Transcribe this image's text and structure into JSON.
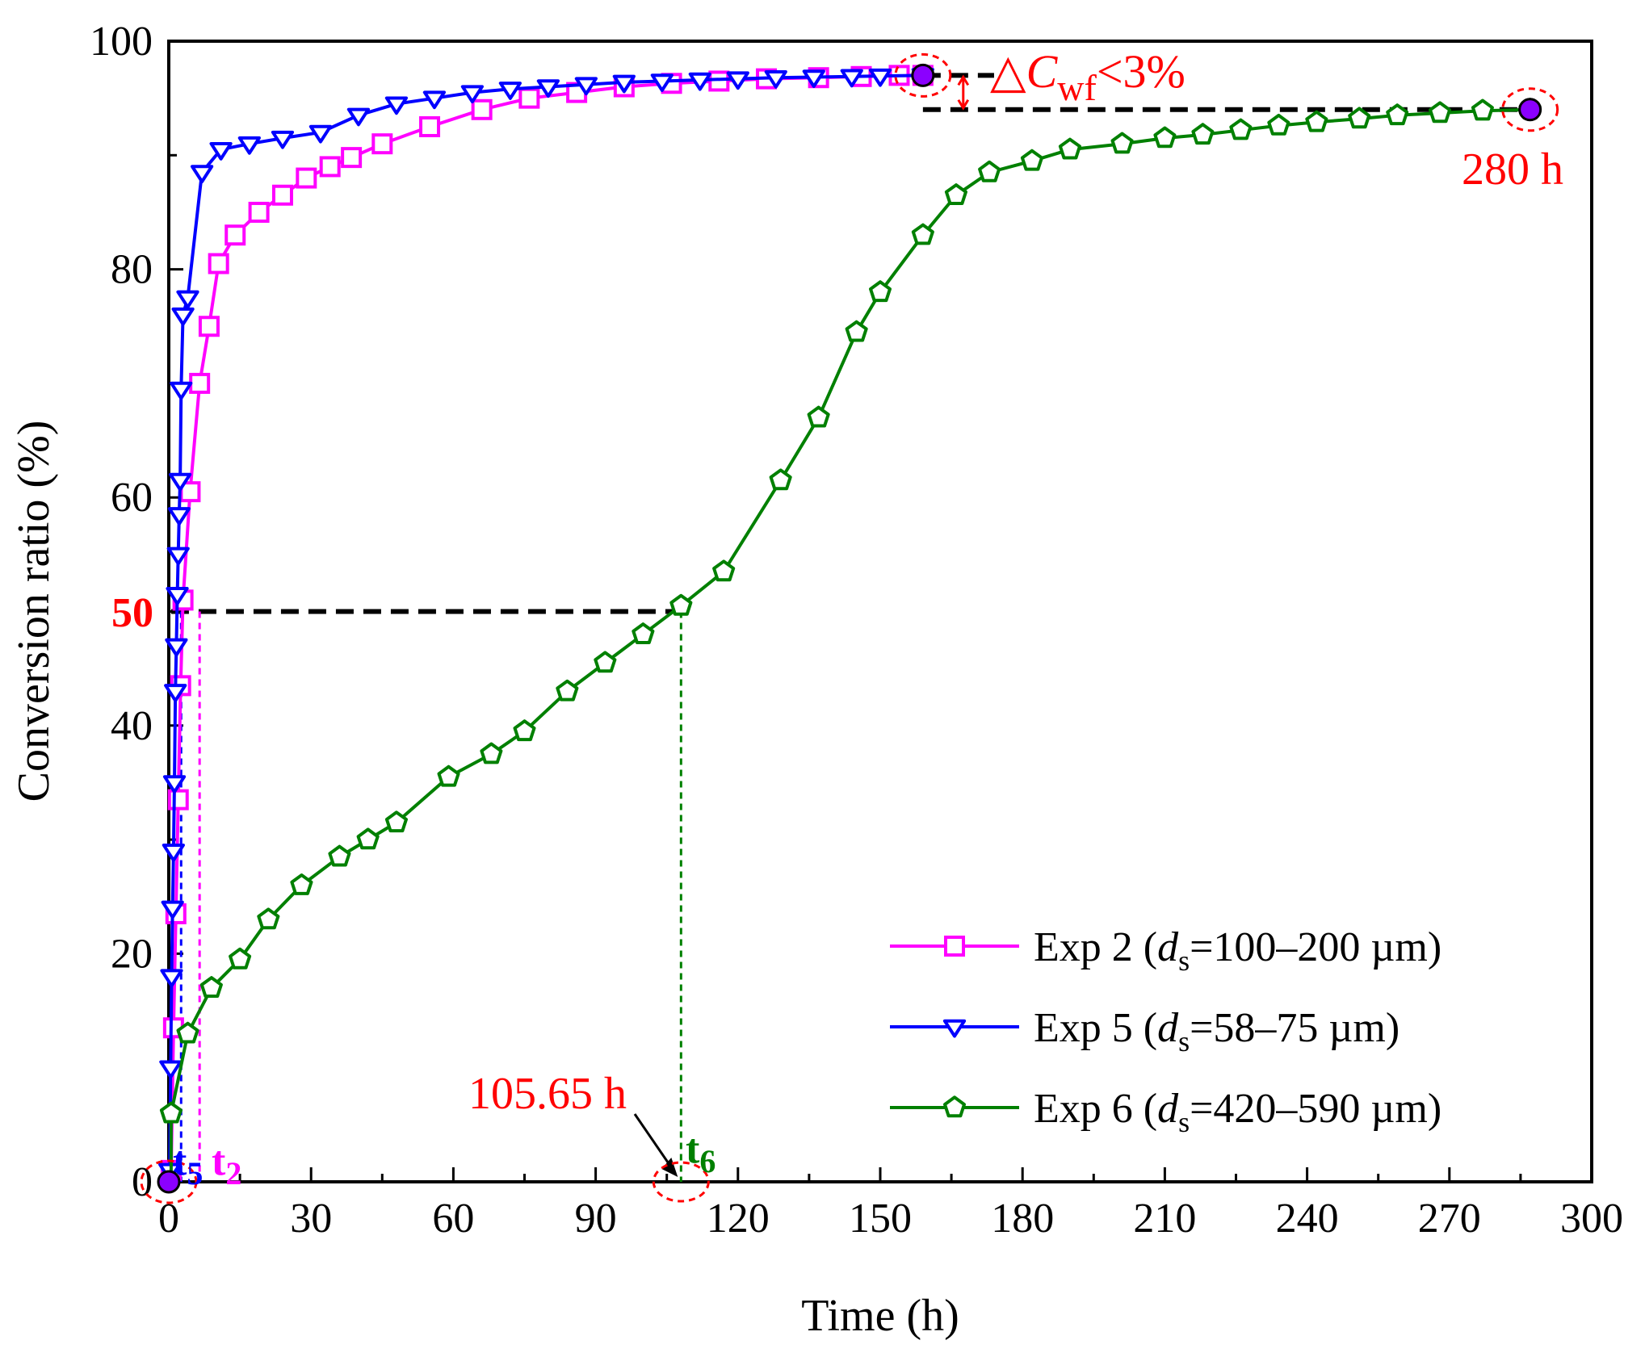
{
  "chart_data": {
    "type": "line",
    "xlabel": "Time (h)",
    "ylabel": "Conversion ratio (%)",
    "xlim": [
      0,
      300
    ],
    "ylim": [
      0,
      100
    ],
    "xticks": [
      "0",
      "30",
      "60",
      "90",
      "120",
      "150",
      "180",
      "210",
      "240",
      "270",
      "300"
    ],
    "yticks": [
      "0",
      "20",
      "40",
      "60",
      "80",
      "100"
    ],
    "y50_label": "50",
    "grid": false,
    "legend_position": "bottom-right",
    "series": [
      {
        "name": "Exp 2",
        "legend_prefix": "Exp 2 (",
        "legend_d": "d",
        "legend_sub": "s",
        "legend_suffix": "=100–200 µm)",
        "color": "#ff00ff",
        "marker": "square",
        "x": [
          0.5,
          1.0,
          1.5,
          2.0,
          2.5,
          3.0,
          4.5,
          6.5,
          8.5,
          10.5,
          14.0,
          19.0,
          24.0,
          29.0,
          34.0,
          38.5,
          45.0,
          55.0,
          66.0,
          76.0,
          86.0,
          96.0,
          106.0,
          116.0,
          126.0,
          137.0,
          146.0,
          154.0,
          159.0
        ],
        "y": [
          1.0,
          13.5,
          23.5,
          33.5,
          43.5,
          51.0,
          60.5,
          70.0,
          75.0,
          80.5,
          83.0,
          85.0,
          86.5,
          88.0,
          89.0,
          89.8,
          91.0,
          92.5,
          94.0,
          95.0,
          95.5,
          96.0,
          96.3,
          96.5,
          96.7,
          96.8,
          96.9,
          97.0,
          97.0
        ]
      },
      {
        "name": "Exp 5",
        "legend_prefix": "Exp 5 (",
        "legend_d": "d",
        "legend_sub": "s",
        "legend_suffix": "=58–75 µm)",
        "color": "#0000ff",
        "marker": "triangle-down",
        "x": [
          0.2,
          0.4,
          0.6,
          0.8,
          1.0,
          1.2,
          1.4,
          1.6,
          1.8,
          2.0,
          2.2,
          2.4,
          2.6,
          3.0,
          4.0,
          7.0,
          11.0,
          17.0,
          24.0,
          32.0,
          40.0,
          48.0,
          56.0,
          64.0,
          72.0,
          80.0,
          88.0,
          96.0,
          104.0,
          112.0,
          120.0,
          128.0,
          136.0,
          144.0,
          150.0,
          159.0
        ],
        "y": [
          1.0,
          10.0,
          18.0,
          24.0,
          29.0,
          35.0,
          43.0,
          47.0,
          51.5,
          55.0,
          58.5,
          61.5,
          69.5,
          76.0,
          77.5,
          88.5,
          90.5,
          91.0,
          91.5,
          92.0,
          93.5,
          94.5,
          95.0,
          95.5,
          95.8,
          96.0,
          96.2,
          96.4,
          96.5,
          96.6,
          96.7,
          96.8,
          96.85,
          96.9,
          96.95,
          97.0
        ]
      },
      {
        "name": "Exp 6",
        "legend_prefix": "Exp 6 (",
        "legend_d": "d",
        "legend_sub": "s",
        "legend_suffix": "=420–590 µm)",
        "color": "#008000",
        "marker": "pentagon",
        "x": [
          0.5,
          4.0,
          9.0,
          15.0,
          21.0,
          28.0,
          36.0,
          42.0,
          48.0,
          59.0,
          68.0,
          75.0,
          84.0,
          92.0,
          100.0,
          108.0,
          117.0,
          129.0,
          137.0,
          145.0,
          150.0,
          159.0,
          166.0,
          173.0,
          182.0,
          190.0,
          201.0,
          210.0,
          218.0,
          226.0,
          234.0,
          242.0,
          251.0,
          259.0,
          268.0,
          277.0,
          287.0
        ],
        "y": [
          6.0,
          13.0,
          17.0,
          19.5,
          23.0,
          26.0,
          28.5,
          30.0,
          31.5,
          35.5,
          37.5,
          39.5,
          43.0,
          45.5,
          48.0,
          50.5,
          53.5,
          61.5,
          67.0,
          74.5,
          78.0,
          83.0,
          86.5,
          88.5,
          89.5,
          90.5,
          91.0,
          91.5,
          91.8,
          92.2,
          92.6,
          92.9,
          93.2,
          93.5,
          93.7,
          93.9,
          94.0
        ]
      }
    ],
    "annotations": {
      "delta_c_prefix": "△C",
      "delta_c_sub": "wf",
      "delta_c_suffix": "<3%",
      "end_time_label": "280 h",
      "t50_time_label": "105.65 h",
      "t5_label": "t",
      "t5_sub": "5",
      "t2_label": "t",
      "t2_sub": "2",
      "t6_label": "t",
      "t6_sub": "6",
      "y50_value": 50,
      "t6_x": 108,
      "t2_x": 6.5,
      "t5_x": 2.6,
      "upper_plateau": 97,
      "lower_plateau": 94,
      "upper_plateau_x": 159,
      "lower_plateau_x": 287,
      "accent_red": "#ff0000",
      "endpoint_fill": "#8b00ff"
    }
  }
}
